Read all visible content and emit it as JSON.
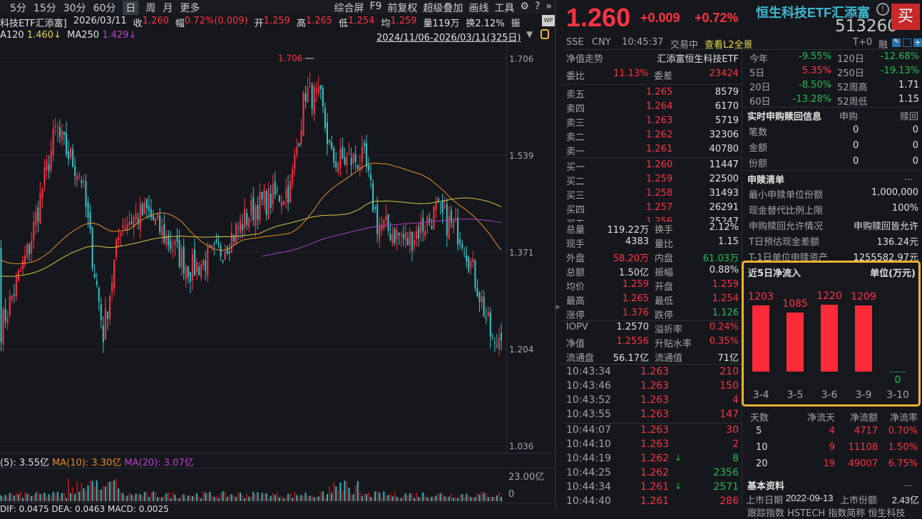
{
  "toolbar": {
    "left": [
      "5分",
      "15分",
      "30分",
      "60分",
      "日",
      "周",
      "月",
      "更多"
    ],
    "selected": "日",
    "right": [
      "综合屏",
      "F9",
      "前复权",
      "超级叠加",
      "画线",
      "工具"
    ]
  },
  "info": {
    "name": "科技ETF汇添富]",
    "date": "2026/03/11",
    "close_label": "收",
    "close": "1.260",
    "range_label": "幅",
    "range": "0.72%(0.009)",
    "open_label": "开",
    "open": "1.259",
    "high_label": "高",
    "high": "1.265",
    "low_label": "低",
    "low": "1.254",
    "avg_label": "均",
    "avg": "1.259",
    "vol": "量119万",
    "turnover": "换2.12%",
    "amp_label": "振"
  },
  "ma": {
    "ma120_label": "A120",
    "ma120": "1.460↓",
    "ma250_label": "MA250",
    "ma250": "1.429↓",
    "period": "2024/11/06-2026/03/11(325日)"
  },
  "chart": {
    "price_ticks": [
      "1.706",
      "1.539",
      "1.371",
      "1.204",
      "1.036"
    ],
    "price_range": [
      1.036,
      1.706
    ],
    "high_marker": "1.706",
    "price_path": [
      [
        0,
        1.24
      ],
      [
        13,
        1.38
      ],
      [
        25,
        1.58
      ],
      [
        37,
        1.5
      ],
      [
        47,
        1.23
      ],
      [
        55,
        1.42
      ],
      [
        67,
        1.44
      ],
      [
        87,
        1.34
      ],
      [
        100,
        1.37
      ],
      [
        117,
        1.45
      ],
      [
        133,
        1.48
      ],
      [
        140,
        1.65
      ],
      [
        147,
        1.63
      ],
      [
        152,
        1.53
      ],
      [
        167,
        1.53
      ],
      [
        173,
        1.42
      ],
      [
        187,
        1.39
      ],
      [
        200,
        1.44
      ],
      [
        212,
        1.4
      ],
      [
        220,
        1.3
      ],
      [
        227,
        1.2
      ],
      [
        230,
        1.24
      ]
    ],
    "colors": {
      "up": "#ff3344",
      "down": "#33c6cc",
      "ma60": "#e8902a",
      "ma120": "#d8c840",
      "ma250": "#b040c8"
    }
  },
  "volume": {
    "ma5": "(5): 3.55亿",
    "ma10": "MA(10): 3.30亿",
    "ma20": "MA(20): 3.07亿",
    "top": "23.00亿",
    "bottom": "0"
  },
  "macd": {
    "text": "DIF: 0.0475  DEA: 0.0463  MACD: 0.0025"
  },
  "quote": {
    "price": "1.260",
    "change": "+0.009",
    "pct": "+0.72%",
    "name": "恒生科技ETF汇添富",
    "code": "513260",
    "buy": "买",
    "exchange": "SSE",
    "currency": "CNY",
    "time": "10:45:37",
    "status": "交易中",
    "l2": "查看L2全景",
    "t0": "T+0",
    "margin": "融"
  },
  "nav": {
    "label": "净值走势",
    "fund": "汇添富恒生科技ETF"
  },
  "weibi": {
    "label": "委比",
    "value": "11.13%",
    "diff_label": "委差",
    "diff": "23424"
  },
  "asks": [
    [
      "卖五",
      "1.265",
      "8579"
    ],
    [
      "卖四",
      "1.264",
      "6170"
    ],
    [
      "卖三",
      "1.263",
      "5719"
    ],
    [
      "卖二",
      "1.262",
      "32306"
    ],
    [
      "卖一",
      "1.261",
      "40780"
    ]
  ],
  "bids": [
    [
      "买一",
      "1.260",
      "11447"
    ],
    [
      "买二",
      "1.259",
      "22500"
    ],
    [
      "买三",
      "1.258",
      "31493"
    ],
    [
      "买四",
      "1.257",
      "26291"
    ],
    [
      "买五",
      "1.256",
      "25247"
    ]
  ],
  "stats": [
    [
      "总量",
      "119.22万",
      "white",
      "换手",
      "2.12%",
      "white"
    ],
    [
      "现手",
      "4383",
      "white",
      "量比",
      "1.15",
      "white"
    ],
    [
      "外盘",
      "58.20万",
      "red",
      "内盘",
      "61.03万",
      "green"
    ],
    [
      "总额",
      "1.50亿",
      "white",
      "振幅",
      "0.88%",
      "white"
    ],
    [
      "均价",
      "1.259",
      "red",
      "开盘",
      "1.259",
      "red"
    ],
    [
      "最高",
      "1.265",
      "red",
      "最低",
      "1.254",
      "red"
    ],
    [
      "涨停",
      "1.376",
      "red",
      "跌停",
      "1.126",
      "green"
    ]
  ],
  "etf": [
    [
      "IOPV",
      "1.2570",
      "white",
      "溢折率",
      "0.24%",
      "red"
    ],
    [
      "净值",
      "1.2556",
      "red",
      "升贴水率",
      "0.35%",
      "red"
    ],
    [
      "流通盘",
      "56.17亿",
      "white",
      "流通值",
      "71亿",
      "white"
    ]
  ],
  "trades": [
    [
      "10:43:34",
      "1.263",
      "210",
      "red",
      ""
    ],
    [
      "10:43:46",
      "1.263",
      "150",
      "red",
      ""
    ],
    [
      "10:43:52",
      "1.263",
      "4",
      "red",
      ""
    ],
    [
      "10:43:55",
      "1.263",
      "147",
      "red",
      ""
    ],
    [
      "10:44:07",
      "1.263",
      "30",
      "red",
      ""
    ],
    [
      "10:44:10",
      "1.263",
      "2",
      "red",
      ""
    ],
    [
      "10:44:19",
      "1.262",
      "8",
      "green",
      "↓"
    ],
    [
      "10:44:25",
      "1.262",
      "2356",
      "green",
      ""
    ],
    [
      "10:44:34",
      "1.261",
      "2571",
      "green",
      "↓"
    ],
    [
      "10:44:40",
      "1.261",
      "286",
      "red",
      ""
    ]
  ],
  "perf": [
    [
      "今年",
      "-9.55%",
      "green",
      "120日",
      "-12.68%",
      "green"
    ],
    [
      "5日",
      "5.35%",
      "red",
      "250日",
      "-19.13%",
      "green"
    ],
    [
      "20日",
      "-8.50%",
      "green",
      "52周高",
      "1.71",
      "white"
    ],
    [
      "60日",
      "-13.28%",
      "green",
      "52周低",
      "1.15",
      "white"
    ]
  ],
  "realtime": {
    "title": "实时申购赎回信息",
    "sub": "申购",
    "red": "赎回",
    "rows": [
      [
        "笔数",
        "0",
        "0"
      ],
      [
        "金额",
        "0",
        "0"
      ],
      [
        "份额",
        "0",
        "0"
      ]
    ]
  },
  "list": {
    "title": "申赎清单",
    "more": "...",
    "rows": [
      [
        "最小申赎单位份额",
        "1,000,000"
      ],
      [
        "现金替代比例上限",
        "100%"
      ],
      [
        "申购赎回允许情况",
        "申购赎回皆允许"
      ],
      [
        "T日预估现金差额",
        "136.24元"
      ],
      [
        "T-1日单位申赎资产",
        "1255582.97元"
      ]
    ]
  },
  "chart_data": {
    "type": "bar",
    "title": "近5日净流入",
    "unit": "单位(万元)",
    "categories": [
      "3-4",
      "3-5",
      "3-6",
      "3-9",
      "3-10"
    ],
    "values": [
      1203,
      1085,
      1220,
      1209,
      0
    ]
  },
  "flow_table": {
    "headers": [
      "天数",
      "净流天",
      "净流额",
      "净流率"
    ],
    "rows": [
      [
        "5",
        "4",
        "4717",
        "0.70%"
      ],
      [
        "10",
        "9",
        "11108",
        "1.50%"
      ],
      [
        "20",
        "19",
        "49007",
        "6.75%"
      ]
    ]
  },
  "basic": {
    "title": "基本资料",
    "more": "...",
    "list_date_label": "上市日期",
    "list_date": "2022-09-13",
    "shares_label": "上市份额",
    "shares": "2.43亿",
    "partial": "跟踪指数 HSTECH  指数简称 恒生科技"
  }
}
